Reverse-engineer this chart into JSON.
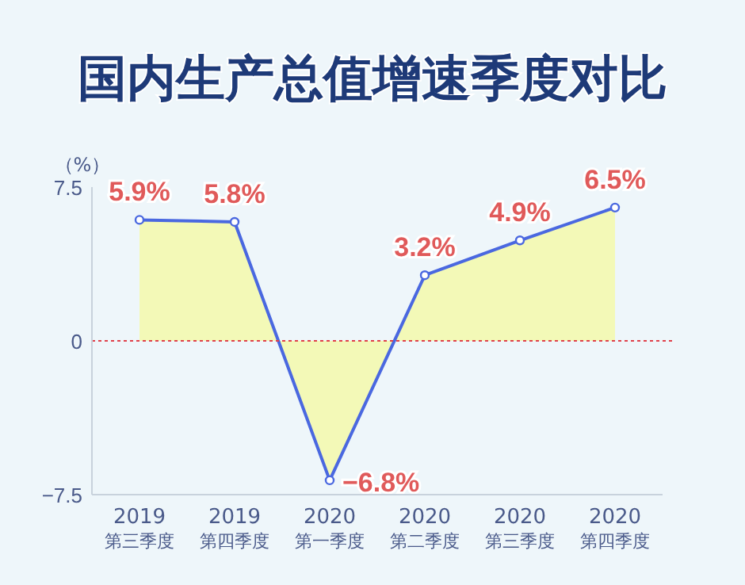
{
  "chart_data": {
    "type": "area",
    "title": "国内生产总值增速季度对比",
    "ylabel": "（%）",
    "categories": [
      "2019\n第三季度",
      "2019\n第四季度",
      "2020\n第一季度",
      "2020\n第二季度",
      "2020\n第三季度",
      "2020\n第四季度"
    ],
    "series": [
      {
        "color": "#4a68e0",
        "values": [
          5.9,
          5.8,
          -6.8,
          3.2,
          4.9,
          6.5
        ],
        "value_labels": [
          "5.9%",
          "5.8%",
          "−6.8%",
          "3.2%",
          "4.9%",
          "6.5%"
        ]
      }
    ],
    "ylim": [
      -7.5,
      7.5
    ],
    "yticks": [
      {
        "value": -7.5,
        "label": "−7.5"
      },
      0,
      7.5
    ],
    "ref_lines": [
      {
        "axis": "y",
        "value": 0,
        "color": "#e0404a",
        "line_style": "dotted"
      }
    ],
    "marker": "circle",
    "line_style": "solid"
  }
}
